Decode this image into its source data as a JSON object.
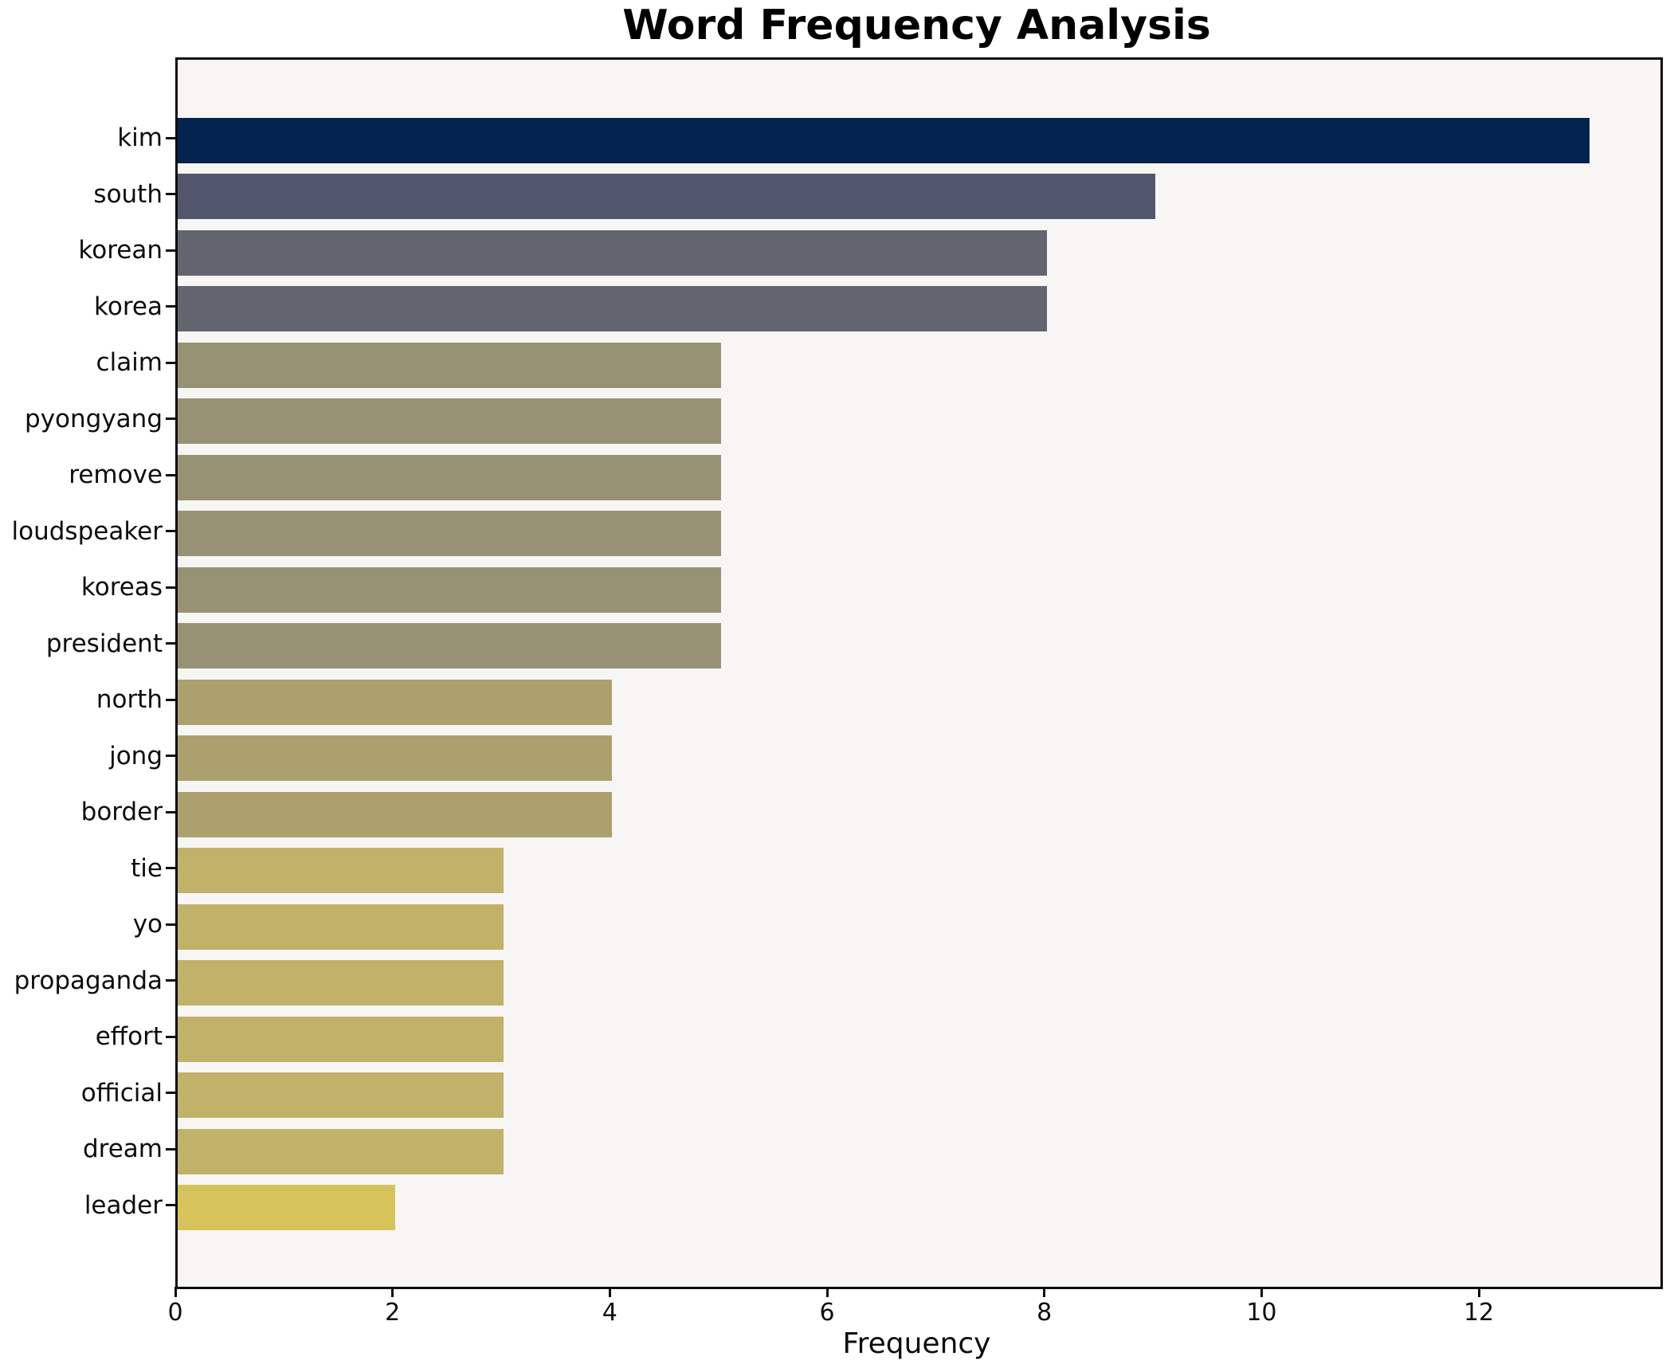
{
  "title": "Word Frequency Analysis",
  "chart_data": {
    "type": "bar",
    "orientation": "horizontal",
    "title": "Word Frequency Analysis",
    "xlabel": "Frequency",
    "ylabel": "",
    "categories": [
      "kim",
      "south",
      "korean",
      "korea",
      "claim",
      "pyongyang",
      "remove",
      "loudspeaker",
      "koreas",
      "president",
      "north",
      "jong",
      "border",
      "tie",
      "yo",
      "propaganda",
      "effort",
      "official",
      "dream",
      "leader"
    ],
    "values": [
      13,
      9,
      8,
      8,
      5,
      5,
      5,
      5,
      5,
      5,
      4,
      4,
      4,
      3,
      3,
      3,
      3,
      3,
      3,
      2
    ],
    "bar_colors": [
      "#02234d",
      "#51566c",
      "#62646f",
      "#62646f",
      "#989274",
      "#989274",
      "#989274",
      "#989274",
      "#989274",
      "#989274",
      "#aca06f",
      "#aca06f",
      "#aca06f",
      "#c1b169",
      "#c1b169",
      "#c1b169",
      "#c1b169",
      "#c1b169",
      "#c1b169",
      "#d6c35c"
    ],
    "xlim": [
      0,
      13.65
    ],
    "xticks": [
      0,
      2,
      4,
      6,
      8,
      10,
      12
    ],
    "grid": false,
    "legend": null,
    "colors": {
      "plot_background": "#f7f6f5",
      "figure_background": "#ffffff",
      "spine": "#0d0d0d",
      "text": "#0d0d0d"
    }
  }
}
